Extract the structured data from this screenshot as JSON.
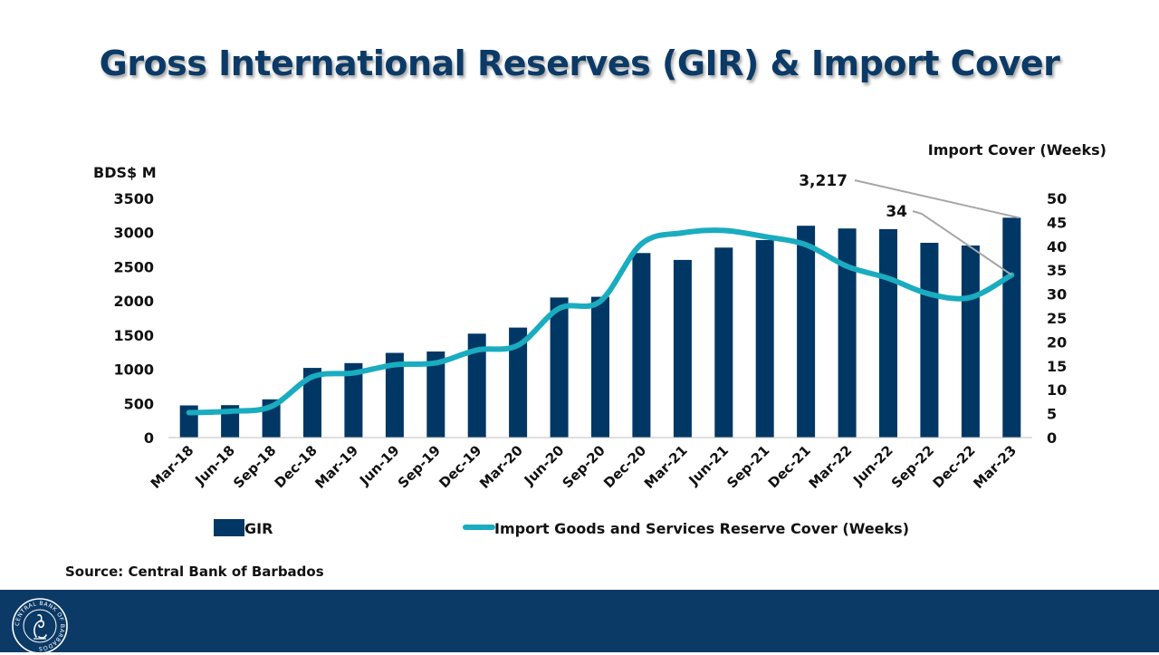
{
  "page": {
    "title": "Gross International Reserves (GIR) & Import Cover",
    "source": "Source: Central Bank of Barbados",
    "seal_text": "CENTRAL BANK OF BARBADOS"
  },
  "colors": {
    "bar": "#003764",
    "line": "#1aacc0",
    "title": "#0b3a66",
    "footer": "#0b3a66",
    "leader": "#a6a6a6"
  },
  "chart_data": {
    "type": "bar",
    "title": "Gross International Reserves (GIR) & Import Cover",
    "categories": [
      "Mar-18",
      "Jun-18",
      "Sep-18",
      "Dec-18",
      "Mar-19",
      "Jun-19",
      "Sep-19",
      "Dec-19",
      "Mar-20",
      "Jun-20",
      "Sep-20",
      "Dec-20",
      "Mar-21",
      "Jun-21",
      "Sep-21",
      "Dec-21",
      "Mar-22",
      "Jun-22",
      "Sep-22",
      "Dec-22",
      "Mar-23"
    ],
    "series": [
      {
        "name": "GIR",
        "type": "bar",
        "axis": "left",
        "values": [
          470,
          475,
          560,
          1020,
          1090,
          1240,
          1260,
          1520,
          1610,
          2050,
          2060,
          2700,
          2600,
          2780,
          2890,
          3100,
          3060,
          3050,
          2850,
          2810,
          3217
        ]
      },
      {
        "name": "Import Goods and Services Reserve Cover (Weeks)",
        "type": "line",
        "axis": "right",
        "values": [
          5.2,
          5.5,
          6.5,
          12.7,
          13.5,
          15.2,
          15.6,
          18.3,
          19.3,
          27.0,
          28.5,
          40.5,
          42.8,
          43.3,
          42.0,
          40.3,
          35.8,
          33.3,
          30.0,
          29.3,
          34.0
        ]
      }
    ],
    "left_axis": {
      "label": "BDS$ M",
      "ylim": [
        0,
        3500
      ],
      "ticks": [
        "0",
        "500",
        "1000",
        "1500",
        "2000",
        "2500",
        "3000",
        "3500"
      ],
      "tick_values": [
        0,
        500,
        1000,
        1500,
        2000,
        2500,
        3000,
        3500
      ]
    },
    "right_axis": {
      "label": "Import Cover (Weeks)",
      "ylim": [
        0,
        50
      ],
      "ticks": [
        "0",
        "5",
        "10",
        "15",
        "20",
        "25",
        "30",
        "35",
        "40",
        "45",
        "50"
      ],
      "tick_values": [
        0,
        5,
        10,
        15,
        20,
        25,
        30,
        35,
        40,
        45,
        50
      ]
    },
    "annotations": [
      {
        "text": "3,217",
        "target_series": "GIR",
        "target_index": 20
      },
      {
        "text": "34",
        "target_series": "Import Goods and Services Reserve Cover (Weeks)",
        "target_index": 20
      }
    ],
    "legend": {
      "placement": "bottom",
      "items": [
        {
          "label": "GIR",
          "kind": "bar"
        },
        {
          "label": "Import Goods and Services Reserve Cover (Weeks)",
          "kind": "line"
        }
      ]
    },
    "grid": false
  }
}
